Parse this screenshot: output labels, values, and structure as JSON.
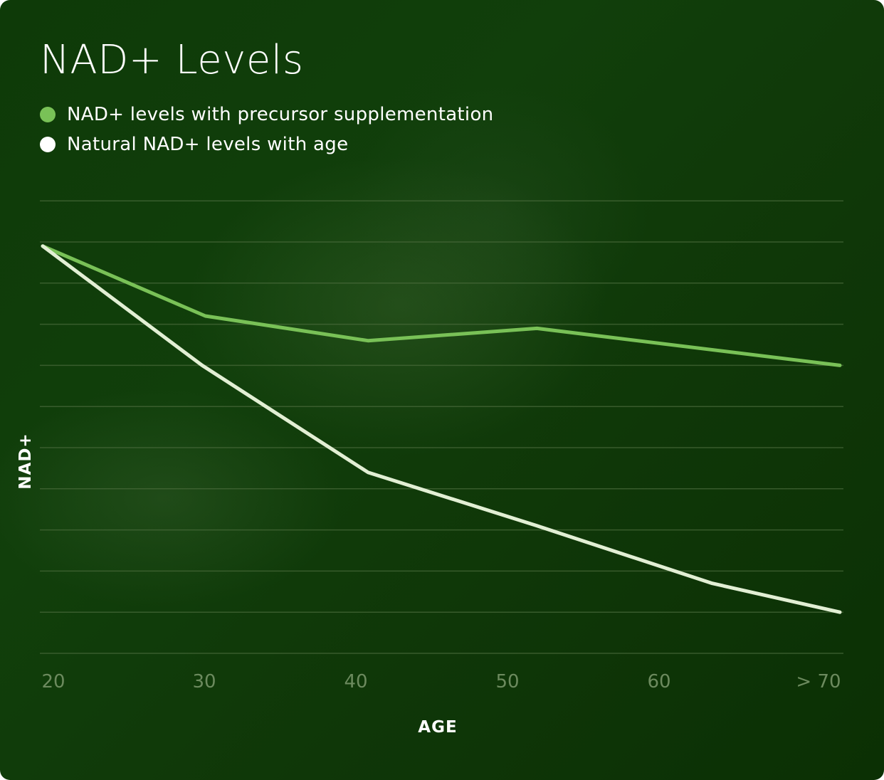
{
  "chart_data": {
    "type": "line",
    "title": "NAD+ Levels",
    "xlabel": "AGE",
    "ylabel": "NAD+",
    "categories": [
      "20",
      "30",
      "40",
      "50",
      "60",
      "> 70"
    ],
    "x": [
      20,
      30,
      40,
      50,
      60,
      70
    ],
    "ylim": [
      0,
      11
    ],
    "grid": true,
    "legend_position": "top-left",
    "series": [
      {
        "name": "NAD+ levels with precursor supplementation",
        "color": "#79c157",
        "x": [
          20,
          30.2,
          40.4,
          51,
          70
        ],
        "y": [
          9.9,
          8.2,
          7.6,
          7.9,
          7.0
        ]
      },
      {
        "name": "Natural NAD+ levels with age",
        "color": "#e2efd4",
        "x": [
          20,
          30,
          40.4,
          51,
          62,
          70
        ],
        "y": [
          9.9,
          7.0,
          4.4,
          3.1,
          1.7,
          1.0
        ]
      }
    ]
  }
}
